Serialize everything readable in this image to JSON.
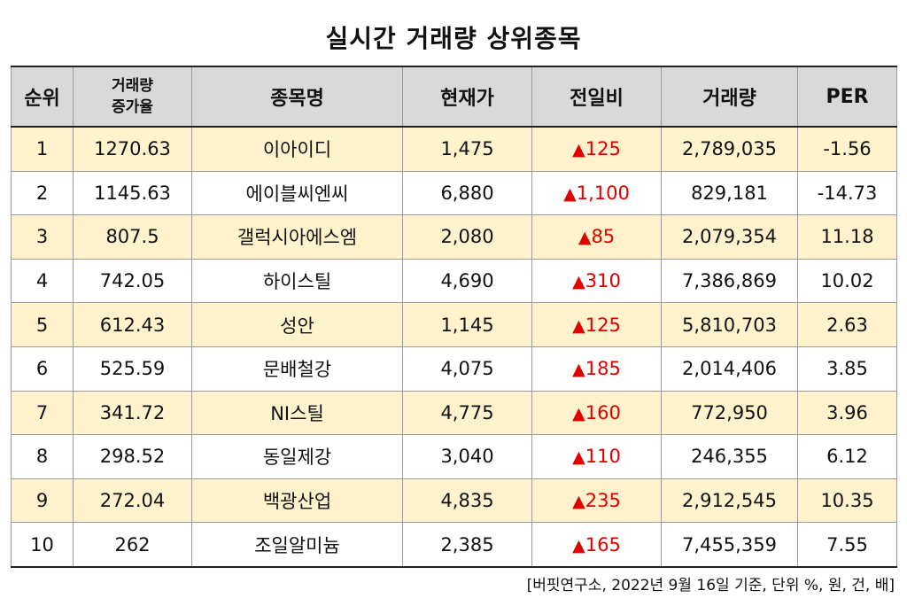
{
  "title": "실시간 거래량 상위종목",
  "columns": {
    "rank": "순위",
    "vol_increase_line1": "거래량",
    "vol_increase_line2": "증가율",
    "name": "종목명",
    "price": "현재가",
    "change": "전일비",
    "volume": "거래량",
    "per": "PER"
  },
  "change_symbol": "▲",
  "colors": {
    "header_bg": "#d9d9d9",
    "highlight_row": "#fff2cc",
    "up": "#e00000"
  },
  "rows": [
    {
      "rank": "1",
      "vol_increase": "1270.63",
      "name": "이아이디",
      "price": "1,475",
      "change": "125",
      "volume": "2,789,035",
      "per": "-1.56"
    },
    {
      "rank": "2",
      "vol_increase": "1145.63",
      "name": "에이블씨엔씨",
      "price": "6,880",
      "change": "1,100",
      "volume": "829,181",
      "per": "-14.73"
    },
    {
      "rank": "3",
      "vol_increase": "807.5",
      "name": "갤럭시아에스엠",
      "price": "2,080",
      "change": "85",
      "volume": "2,079,354",
      "per": "11.18"
    },
    {
      "rank": "4",
      "vol_increase": "742.05",
      "name": "하이스틸",
      "price": "4,690",
      "change": "310",
      "volume": "7,386,869",
      "per": "10.02"
    },
    {
      "rank": "5",
      "vol_increase": "612.43",
      "name": "성안",
      "price": "1,145",
      "change": "125",
      "volume": "5,810,703",
      "per": "2.63"
    },
    {
      "rank": "6",
      "vol_increase": "525.59",
      "name": "문배철강",
      "price": "4,075",
      "change": "185",
      "volume": "2,014,406",
      "per": "3.85"
    },
    {
      "rank": "7",
      "vol_increase": "341.72",
      "name": "NI스틸",
      "price": "4,775",
      "change": "160",
      "volume": "772,950",
      "per": "3.96"
    },
    {
      "rank": "8",
      "vol_increase": "298.52",
      "name": "동일제강",
      "price": "3,040",
      "change": "110",
      "volume": "246,355",
      "per": "6.12"
    },
    {
      "rank": "9",
      "vol_increase": "272.04",
      "name": "백광산업",
      "price": "4,835",
      "change": "235",
      "volume": "2,912,545",
      "per": "10.35"
    },
    {
      "rank": "10",
      "vol_increase": "262",
      "name": "조일알미늄",
      "price": "2,385",
      "change": "165",
      "volume": "7,455,359",
      "per": "7.55"
    }
  ],
  "footnote": "[버핏연구소, 2022년 9월 16일 기준, 단위 %, 원, 건, 배]"
}
